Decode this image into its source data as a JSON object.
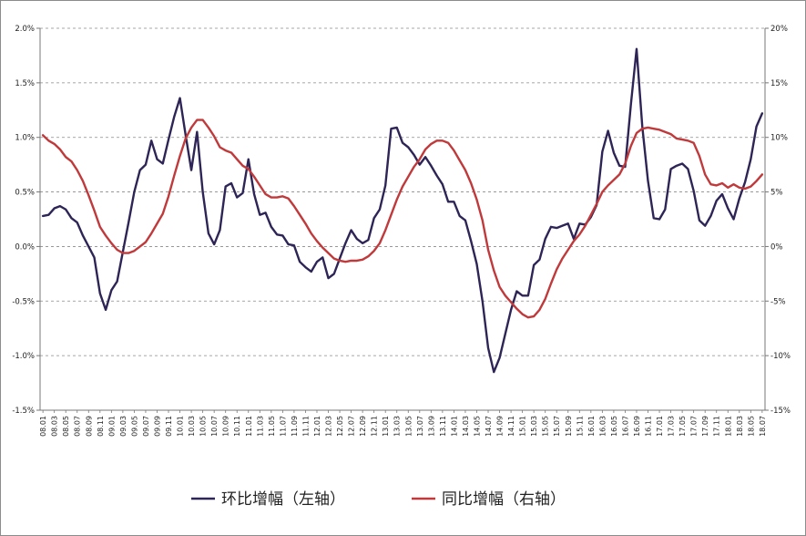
{
  "chart_data": {
    "type": "line",
    "title": "",
    "left_axis": {
      "ylim": [
        -1.5,
        2.0
      ],
      "ticks": [
        -1.5,
        -1.0,
        -0.5,
        0.0,
        0.5,
        1.0,
        1.5,
        2.0
      ],
      "tick_labels": [
        "-1.5%",
        "-1.0%",
        "-0.5%",
        "0.0%",
        "0.5%",
        "1.0%",
        "1.5%",
        "2.0%"
      ]
    },
    "right_axis": {
      "ylim": [
        -15,
        20
      ],
      "ticks": [
        -15,
        -10,
        -5,
        0,
        5,
        10,
        15,
        20
      ],
      "tick_labels": [
        "-15%",
        "-10%",
        "-5%",
        "0%",
        "5%",
        "10%",
        "15%",
        "20%"
      ]
    },
    "grid": "horizontal-dashed",
    "legend_position": "bottom",
    "x_tick_labels": [
      "08.01",
      "08.03",
      "08.05",
      "08.07",
      "08.09",
      "08.11",
      "09.01",
      "09.03",
      "09.05",
      "09.07",
      "09.09",
      "09.11",
      "10.01",
      "10.03",
      "10.05",
      "10.07",
      "10.09",
      "10.11",
      "11.01",
      "11.03",
      "11.05",
      "11.07",
      "11.09",
      "11.11",
      "12.01",
      "12.03",
      "12.05",
      "12.07",
      "12.09",
      "12.11",
      "13.01",
      "13.03",
      "13.05",
      "13.07",
      "13.09",
      "13.11",
      "14.01",
      "14.03",
      "14.05",
      "14.07",
      "14.09",
      "14.11",
      "15.01",
      "15.03",
      "15.05",
      "15.07",
      "15.09",
      "15.11",
      "16.01",
      "16.03",
      "16.05",
      "16.07",
      "16.09",
      "16.11",
      "17.01",
      "17.03",
      "17.05",
      "17.07",
      "17.09",
      "17.11",
      "18.01",
      "18.03",
      "18.05",
      "18.07"
    ],
    "series": [
      {
        "name": "环比增幅（左轴）",
        "axis": "left",
        "color": "#2e2456",
        "values": [
          0.28,
          0.29,
          0.35,
          0.37,
          0.34,
          0.26,
          0.22,
          0.1,
          0.0,
          -0.1,
          -0.43,
          -0.58,
          -0.4,
          -0.32,
          -0.05,
          0.22,
          0.5,
          0.7,
          0.75,
          0.97,
          0.8,
          0.76,
          0.98,
          1.19,
          1.36,
          1.02,
          0.7,
          1.05,
          0.5,
          0.12,
          0.02,
          0.15,
          0.55,
          0.58,
          0.45,
          0.49,
          0.8,
          0.48,
          0.29,
          0.31,
          0.18,
          0.11,
          0.1,
          0.02,
          0.01,
          -0.14,
          -0.19,
          -0.23,
          -0.14,
          -0.1,
          -0.29,
          -0.25,
          -0.11,
          0.03,
          0.15,
          0.07,
          0.03,
          0.06,
          0.26,
          0.34,
          0.56,
          1.08,
          1.09,
          0.95,
          0.91,
          0.84,
          0.75,
          0.82,
          0.74,
          0.65,
          0.57,
          0.41,
          0.41,
          0.28,
          0.24,
          0.05,
          -0.16,
          -0.5,
          -0.93,
          -1.15,
          -1.02,
          -0.8,
          -0.58,
          -0.41,
          -0.45,
          -0.45,
          -0.17,
          -0.12,
          0.07,
          0.18,
          0.17,
          0.19,
          0.21,
          0.07,
          0.21,
          0.2,
          0.27,
          0.38,
          0.87,
          1.06,
          0.86,
          0.74,
          0.73,
          1.3,
          1.81,
          1.1,
          0.6,
          0.26,
          0.25,
          0.34,
          0.71,
          0.74,
          0.76,
          0.71,
          0.51,
          0.24,
          0.19,
          0.28,
          0.42,
          0.48,
          0.35,
          0.25,
          0.44,
          0.59,
          0.8,
          1.1,
          1.22
        ]
      },
      {
        "name": "同比增幅（右轴）",
        "axis": "right",
        "color": "#c0393b",
        "values": [
          10.2,
          9.7,
          9.4,
          8.9,
          8.2,
          7.8,
          7.0,
          6.0,
          4.7,
          3.3,
          1.8,
          1.0,
          0.3,
          -0.3,
          -0.6,
          -0.6,
          -0.4,
          0.0,
          0.4,
          1.2,
          2.1,
          3.0,
          4.6,
          6.5,
          8.3,
          9.9,
          10.9,
          11.6,
          11.6,
          10.9,
          10.1,
          9.1,
          8.8,
          8.6,
          8.0,
          7.4,
          7.1,
          6.4,
          5.6,
          4.8,
          4.5,
          4.5,
          4.6,
          4.4,
          3.7,
          2.9,
          2.1,
          1.2,
          0.5,
          -0.1,
          -0.6,
          -1.1,
          -1.3,
          -1.4,
          -1.3,
          -1.3,
          -1.2,
          -0.9,
          -0.4,
          0.3,
          1.5,
          2.9,
          4.3,
          5.5,
          6.4,
          7.3,
          8.0,
          8.9,
          9.4,
          9.7,
          9.7,
          9.5,
          8.8,
          7.9,
          7.0,
          5.8,
          4.3,
          2.4,
          -0.3,
          -2.2,
          -3.7,
          -4.5,
          -5.1,
          -5.7,
          -6.2,
          -6.5,
          -6.4,
          -5.8,
          -4.8,
          -3.4,
          -2.1,
          -1.1,
          -0.3,
          0.5,
          1.1,
          1.9,
          2.9,
          3.9,
          5.0,
          5.6,
          6.1,
          6.6,
          7.6,
          9.2,
          10.4,
          10.8,
          10.9,
          10.8,
          10.7,
          10.5,
          10.3,
          9.9,
          9.8,
          9.7,
          9.5,
          8.3,
          6.6,
          5.7,
          5.6,
          5.8,
          5.4,
          5.7,
          5.4,
          5.3,
          5.5,
          6.0,
          6.6
        ]
      }
    ]
  }
}
